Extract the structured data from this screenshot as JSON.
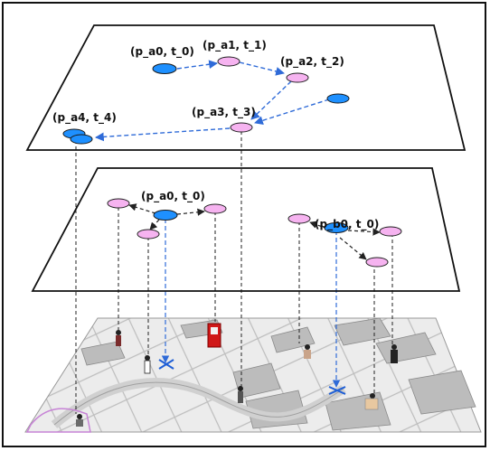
{
  "top_plane": {
    "labels": {
      "pa0_t0": "(p_a0, t_0)",
      "pa1_t1": "(p_a1, t_1)",
      "pa2_t2": "(p_a2, t_2)",
      "pa3_t3": "(p_a3, t_3)",
      "pa4_t4": "(p_a4, t_4)"
    }
  },
  "middle_plane": {
    "labels": {
      "pa0_t0": "(p_a0, t_0)",
      "pb0_t0": "(p_b0, t_0)"
    }
  },
  "colors": {
    "blue_node": "#1e90ff",
    "pink_node": "#f6b3f0",
    "arrow_blue": "#2f6bd8",
    "arrow_black": "#222222",
    "map_bg": "#ededed",
    "plane_stroke": "#111111"
  },
  "icons": [
    "person-icon",
    "phone-booth-icon",
    "map-pin-icon"
  ]
}
